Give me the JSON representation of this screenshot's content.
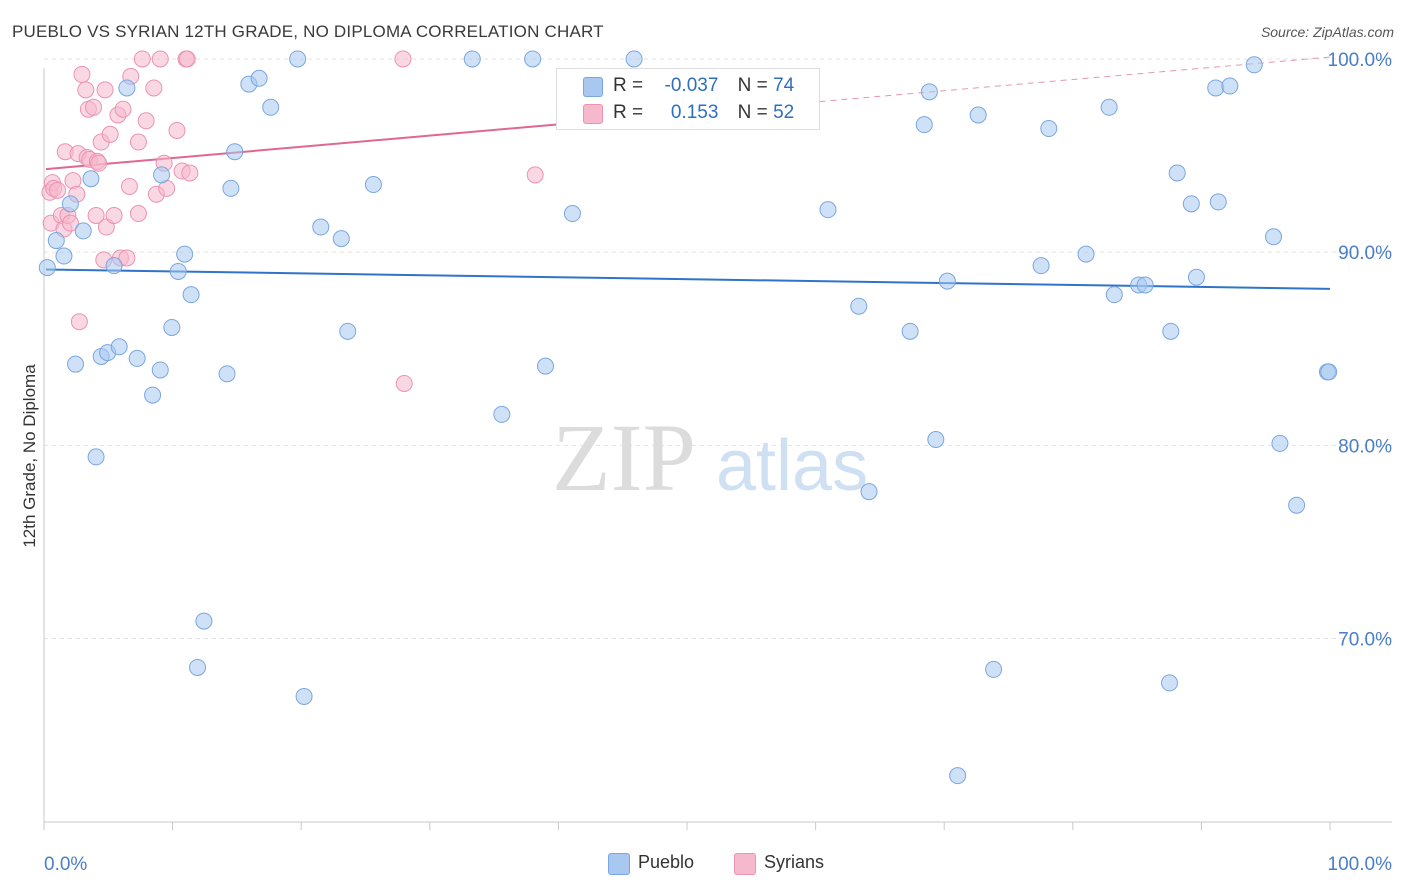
{
  "header": {
    "title": "PUEBLO VS SYRIAN 12TH GRADE, NO DIPLOMA CORRELATION CHART",
    "source": "Source: ZipAtlas.com"
  },
  "watermark": {
    "zip": "ZIP",
    "atlas": "atlas"
  },
  "legend": {
    "rows": [
      {
        "r_label": "R =",
        "r_value": "-0.037",
        "n_label": "N =",
        "n_value": "74",
        "color": "#a8c8f0"
      },
      {
        "r_label": "R =",
        "r_value": "0.153",
        "n_label": "N =",
        "n_value": "52",
        "color": "#f5b8cc"
      }
    ]
  },
  "bottom_legend": {
    "pueblo": "Pueblo",
    "syrians": "Syrians"
  },
  "chart_data": {
    "type": "scatter",
    "title": "PUEBLO VS SYRIAN 12TH GRADE, NO DIPLOMA CORRELATION CHART",
    "xlabel": "",
    "ylabel": "12th Grade, No Diploma",
    "xlim": [
      0,
      100
    ],
    "ylim": [
      60.5,
      101.5
    ],
    "x_tick_labels": [
      "0.0%",
      "100.0%"
    ],
    "y_ticks": [
      100,
      90,
      80,
      70
    ],
    "y_tick_labels": [
      "100.0%",
      "90.0%",
      "80.0%",
      "70.0%"
    ],
    "grid": true,
    "colors": {
      "pueblo_fill": "#a8c8f0",
      "pueblo_stroke": "#7aa6e0",
      "pueblo_line": "#2f74c8",
      "syrians_fill": "#f5b8cc",
      "syrians_stroke": "#eb93b1",
      "syrians_line": "#e0678f",
      "axis_label": "#4a7ec7"
    },
    "series": [
      {
        "name": "Pueblo",
        "trend": {
          "x": [
            0,
            100
          ],
          "y": [
            89.1,
            88.1
          ]
        },
        "points": [
          [
            0.1,
            89.2
          ],
          [
            0.8,
            90.6
          ],
          [
            1.4,
            89.8
          ],
          [
            1.9,
            92.5
          ],
          [
            2.3,
            84.2
          ],
          [
            2.9,
            91.1
          ],
          [
            3.5,
            93.8
          ],
          [
            3.9,
            79.4
          ],
          [
            4.3,
            84.6
          ],
          [
            4.8,
            84.8
          ],
          [
            5.3,
            89.3
          ],
          [
            5.7,
            85.1
          ],
          [
            6.3,
            98.5
          ],
          [
            7.1,
            84.5
          ],
          [
            8.3,
            82.6
          ],
          [
            8.9,
            83.9
          ],
          [
            9.0,
            94.0
          ],
          [
            9.8,
            86.1
          ],
          [
            10.3,
            89.0
          ],
          [
            10.8,
            89.9
          ],
          [
            11.3,
            87.8
          ],
          [
            11.8,
            68.5
          ],
          [
            12.3,
            70.9
          ],
          [
            14.1,
            83.7
          ],
          [
            14.4,
            93.3
          ],
          [
            14.7,
            95.2
          ],
          [
            15.8,
            98.7
          ],
          [
            16.6,
            99.0
          ],
          [
            17.5,
            97.5
          ],
          [
            19.6,
            100.0
          ],
          [
            20.1,
            67.0
          ],
          [
            21.4,
            91.3
          ],
          [
            23.0,
            90.7
          ],
          [
            23.5,
            85.9
          ],
          [
            25.5,
            93.5
          ],
          [
            33.2,
            100.0
          ],
          [
            35.5,
            81.6
          ],
          [
            37.9,
            100.0
          ],
          [
            38.9,
            84.1
          ],
          [
            41.0,
            92.0
          ],
          [
            45.5,
            97.6
          ],
          [
            45.8,
            100.0
          ],
          [
            60.9,
            92.2
          ],
          [
            63.3,
            87.2
          ],
          [
            64.1,
            77.6
          ],
          [
            67.3,
            85.9
          ],
          [
            68.4,
            96.6
          ],
          [
            68.8,
            98.3
          ],
          [
            69.3,
            80.3
          ],
          [
            70.2,
            88.5
          ],
          [
            71.0,
            62.9
          ],
          [
            72.6,
            97.1
          ],
          [
            73.8,
            68.4
          ],
          [
            77.5,
            89.3
          ],
          [
            78.1,
            96.4
          ],
          [
            81.0,
            89.9
          ],
          [
            82.8,
            97.5
          ],
          [
            83.2,
            87.8
          ],
          [
            85.1,
            88.3
          ],
          [
            85.6,
            88.3
          ],
          [
            87.5,
            67.7
          ],
          [
            87.6,
            85.9
          ],
          [
            88.1,
            94.1
          ],
          [
            89.2,
            92.5
          ],
          [
            89.6,
            88.7
          ],
          [
            91.1,
            98.5
          ],
          [
            91.3,
            92.6
          ],
          [
            92.2,
            98.6
          ],
          [
            94.1,
            99.7
          ],
          [
            95.6,
            90.8
          ],
          [
            96.1,
            80.1
          ],
          [
            97.4,
            76.9
          ],
          [
            99.8,
            83.8
          ],
          [
            99.9,
            83.8
          ]
        ]
      },
      {
        "name": "Syrians",
        "trend": {
          "x": [
            0,
            50
          ],
          "y": [
            94.3,
            97.2
          ]
        },
        "trend_extension": {
          "x": [
            50,
            100
          ],
          "y": [
            97.2,
            100.1
          ]
        },
        "points": [
          [
            0.3,
            93.1
          ],
          [
            0.4,
            91.5
          ],
          [
            0.5,
            93.6
          ],
          [
            0.6,
            93.3
          ],
          [
            0.9,
            93.2
          ],
          [
            1.2,
            91.9
          ],
          [
            1.4,
            91.2
          ],
          [
            1.5,
            95.2
          ],
          [
            1.7,
            91.9
          ],
          [
            1.9,
            91.5
          ],
          [
            2.1,
            93.7
          ],
          [
            2.4,
            93.0
          ],
          [
            2.5,
            95.1
          ],
          [
            2.6,
            86.4
          ],
          [
            2.8,
            99.2
          ],
          [
            3.1,
            98.4
          ],
          [
            3.2,
            94.9
          ],
          [
            3.3,
            97.4
          ],
          [
            3.4,
            94.8
          ],
          [
            3.7,
            97.5
          ],
          [
            3.9,
            91.9
          ],
          [
            4.0,
            94.7
          ],
          [
            4.1,
            94.6
          ],
          [
            4.3,
            95.7
          ],
          [
            4.5,
            89.6
          ],
          [
            4.6,
            98.4
          ],
          [
            4.7,
            91.3
          ],
          [
            5.0,
            96.1
          ],
          [
            5.3,
            91.9
          ],
          [
            5.6,
            97.1
          ],
          [
            5.8,
            89.7
          ],
          [
            6.0,
            97.4
          ],
          [
            6.3,
            89.7
          ],
          [
            6.5,
            93.4
          ],
          [
            6.6,
            99.1
          ],
          [
            7.2,
            95.7
          ],
          [
            7.2,
            92.0
          ],
          [
            7.5,
            100.0
          ],
          [
            7.8,
            96.8
          ],
          [
            8.4,
            98.5
          ],
          [
            8.6,
            93.0
          ],
          [
            8.9,
            100.0
          ],
          [
            9.2,
            94.6
          ],
          [
            9.4,
            93.3
          ],
          [
            10.2,
            96.3
          ],
          [
            10.6,
            94.2
          ],
          [
            10.9,
            100.0
          ],
          [
            11.0,
            100.0
          ],
          [
            11.2,
            94.1
          ],
          [
            27.8,
            100.0
          ],
          [
            27.9,
            83.2
          ],
          [
            38.1,
            94.0
          ]
        ]
      }
    ]
  }
}
